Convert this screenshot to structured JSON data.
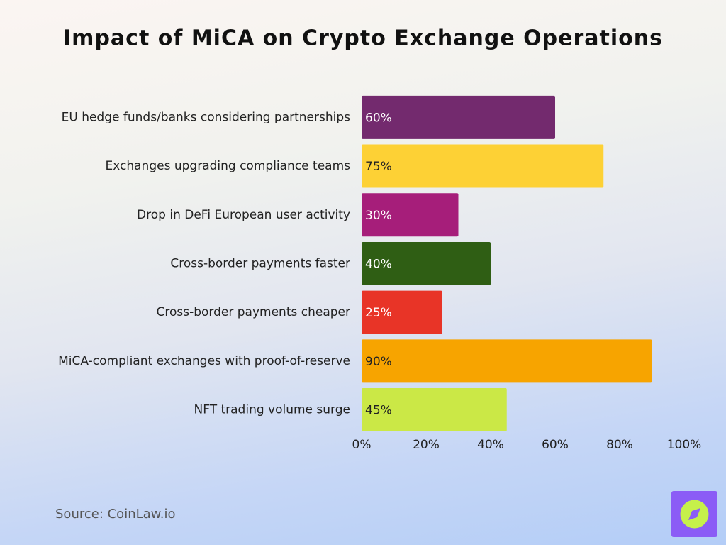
{
  "chart_data": {
    "type": "bar",
    "orientation": "horizontal",
    "title": "Impact of MiCA on Crypto Exchange Operations",
    "categories": [
      "EU hedge funds/banks considering partnerships",
      "Exchanges upgrading compliance teams",
      "Drop in DeFi European user activity",
      "Cross-border payments faster",
      "Cross-border payments cheaper",
      "MiCA-compliant exchanges with proof-of-reserve",
      "NFT trading volume surge"
    ],
    "values": [
      60,
      75,
      30,
      40,
      25,
      90,
      45
    ],
    "value_labels": [
      "60%",
      "75%",
      "30%",
      "40%",
      "25%",
      "90%",
      "45%"
    ],
    "colors": [
      "#732a6e",
      "#fdd135",
      "#a61e7a",
      "#2f5e14",
      "#e83427",
      "#f7a400",
      "#cbe846"
    ],
    "xlim": [
      0,
      100
    ],
    "xticks": [
      {
        "value": 0,
        "label": "0%"
      },
      {
        "value": 20,
        "label": "20%"
      },
      {
        "value": 40,
        "label": "40%"
      },
      {
        "value": 60,
        "label": "60%"
      },
      {
        "value": 80,
        "label": "80%"
      },
      {
        "value": 100,
        "label": "100%"
      }
    ],
    "grid": false,
    "source": "Source: CoinLaw.io"
  }
}
